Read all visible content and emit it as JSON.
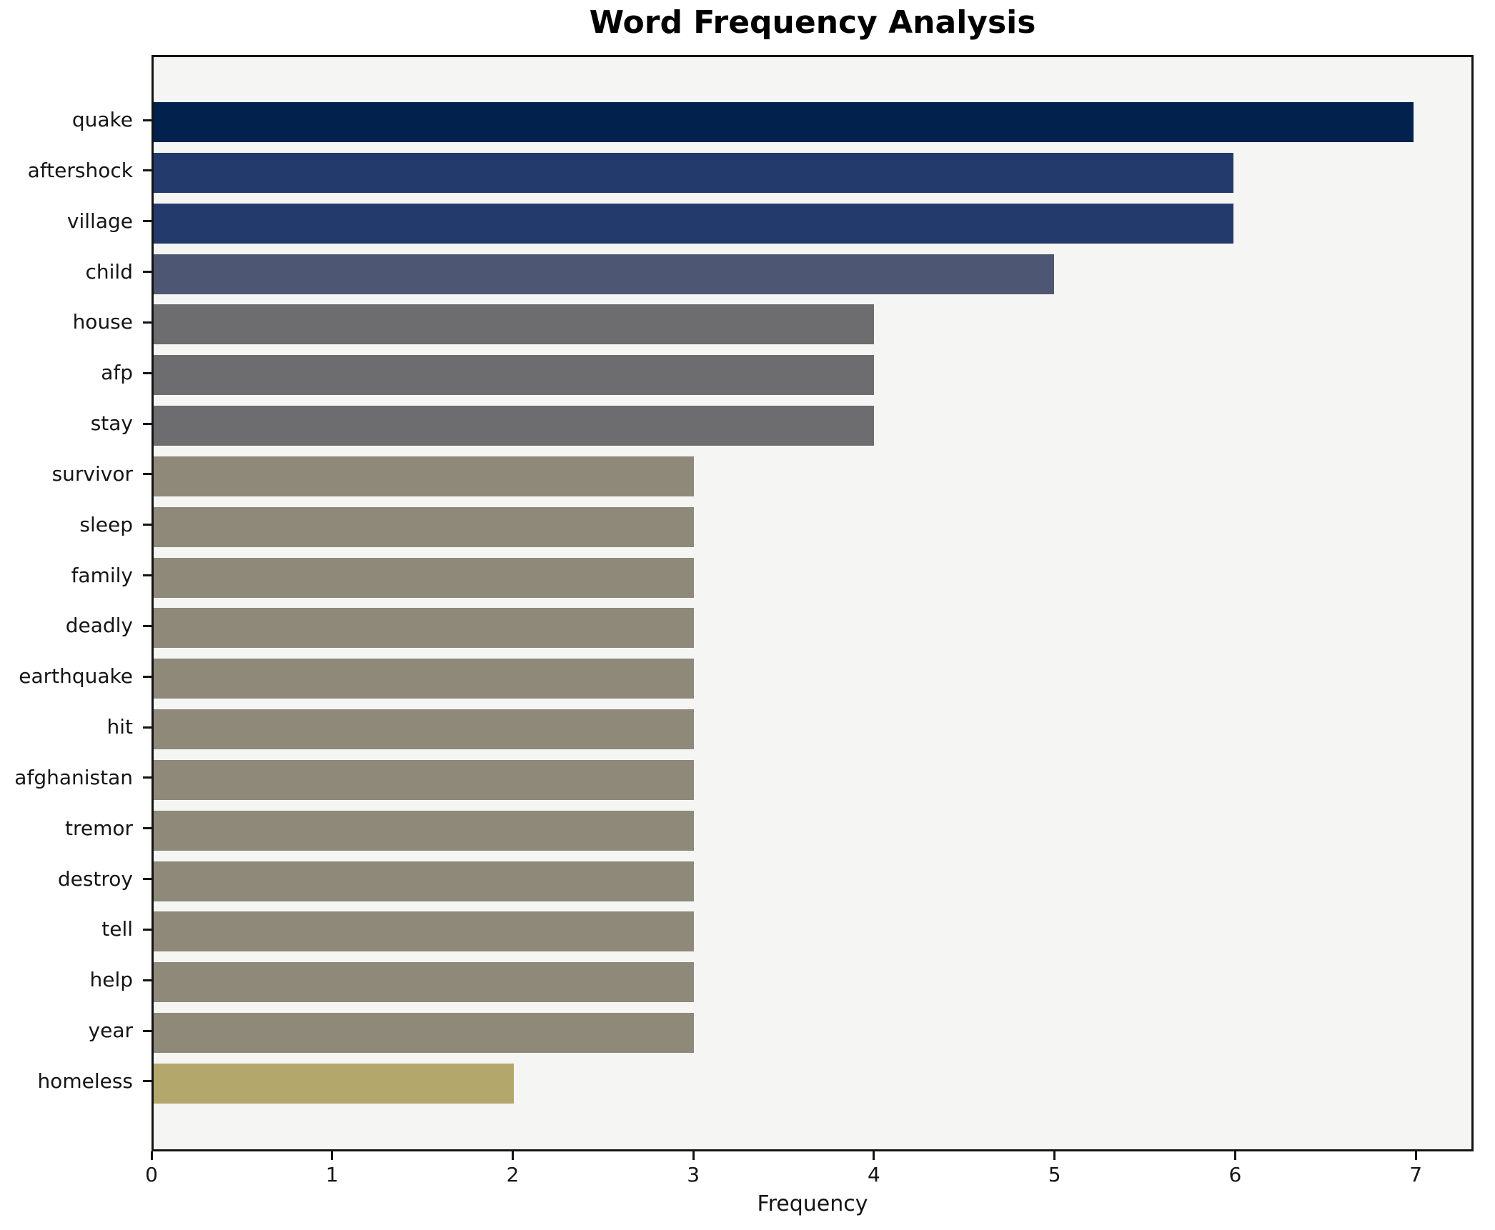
{
  "chart_data": {
    "type": "bar",
    "orientation": "horizontal",
    "title": "Word Frequency Analysis",
    "xlabel": "Frequency",
    "ylabel": "",
    "categories": [
      "quake",
      "aftershock",
      "village",
      "child",
      "house",
      "afp",
      "stay",
      "survivor",
      "sleep",
      "family",
      "deadly",
      "earthquake",
      "hit",
      "afghanistan",
      "tremor",
      "destroy",
      "tell",
      "help",
      "year",
      "homeless"
    ],
    "values": [
      7,
      6,
      6,
      5,
      4,
      4,
      4,
      3,
      3,
      3,
      3,
      3,
      3,
      3,
      3,
      3,
      3,
      3,
      3,
      2
    ],
    "bar_colors": [
      "#02214d",
      "#233a6c",
      "#233a6c",
      "#4d5673",
      "#6d6d70",
      "#6d6d70",
      "#6d6d70",
      "#8e8979",
      "#8e8979",
      "#8e8979",
      "#8e8979",
      "#8e8979",
      "#8e8979",
      "#8e8979",
      "#8e8979",
      "#8e8979",
      "#8e8979",
      "#8e8979",
      "#8e8979",
      "#b3a76c"
    ],
    "xticks": [
      "0",
      "1",
      "2",
      "3",
      "4",
      "5",
      "6",
      "7"
    ],
    "xlim": [
      0,
      7.32
    ],
    "grid": false,
    "legend": "none",
    "plot_background": "#f5f5f3",
    "figure_background": "#ffffff",
    "spine_color": "#141414"
  }
}
